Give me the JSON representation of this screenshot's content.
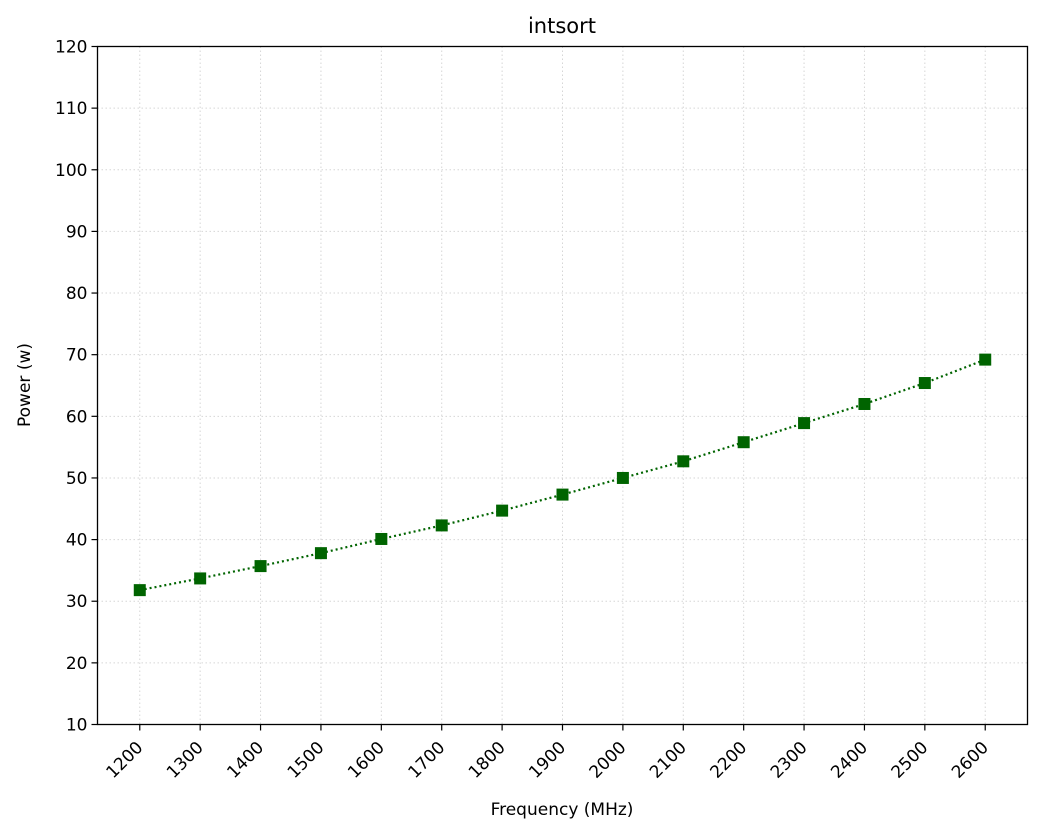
{
  "chart_data": {
    "type": "line",
    "title": "intsort",
    "xlabel": "Frequency (MHz)",
    "ylabel": "Power (w)",
    "x": [
      1200,
      1300,
      1400,
      1500,
      1600,
      1700,
      1800,
      1900,
      2000,
      2100,
      2200,
      2300,
      2400,
      2500,
      2600
    ],
    "xticks": [
      "1200",
      "1300",
      "1400",
      "1500",
      "1600",
      "1700",
      "1800",
      "1900",
      "2000",
      "2100",
      "2200",
      "2300",
      "2400",
      "2500",
      "2600"
    ],
    "xlim": [
      1130,
      2670
    ],
    "ylim": [
      10,
      120
    ],
    "yticks": [
      10,
      20,
      30,
      40,
      50,
      60,
      70,
      80,
      90,
      100,
      110,
      120
    ],
    "grid": true,
    "series": [
      {
        "color": "#006400",
        "marker": "square",
        "linestyle": "dotted",
        "values": [
          31.8,
          33.7,
          35.7,
          37.8,
          40.1,
          42.3,
          44.7,
          47.3,
          50.0,
          52.7,
          55.8,
          58.9,
          62.0,
          65.4,
          69.2
        ]
      }
    ]
  }
}
